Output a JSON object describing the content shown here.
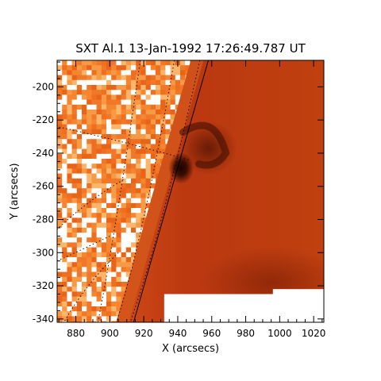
{
  "chart_data": {
    "type": "heatmap",
    "title": "SXT Al.1 13-Jan-1992 17:26:49.787 UT",
    "xlabel": "X (arcsecs)",
    "ylabel": "Y (arcsecs)",
    "xlim": [
      869,
      1026
    ],
    "ylim": [
      -342,
      -184
    ],
    "x_ticks": [
      880,
      900,
      920,
      940,
      960,
      980,
      1000,
      1020
    ],
    "y_ticks": [
      -200,
      -220,
      -240,
      -260,
      -280,
      -300,
      -320,
      -340
    ],
    "grid": false,
    "colormap": "red-orange (SXT)",
    "colors": {
      "limb_background": "#f07828",
      "disk_dark": "#a82a0a",
      "disk_mid": "#c43d12",
      "kernel": "#1a0500",
      "no_data": "#ffffff"
    },
    "features": [
      {
        "label": "compact bright kernel",
        "x": 942,
        "y": -249
      },
      {
        "label": "dark loop structure",
        "x": 958,
        "y": -237
      },
      {
        "label": "dark lower-right region",
        "x": 995,
        "y": -318
      }
    ],
    "solar_limb": [
      [
        958,
        -184
      ],
      [
        914,
        -342
      ]
    ]
  }
}
